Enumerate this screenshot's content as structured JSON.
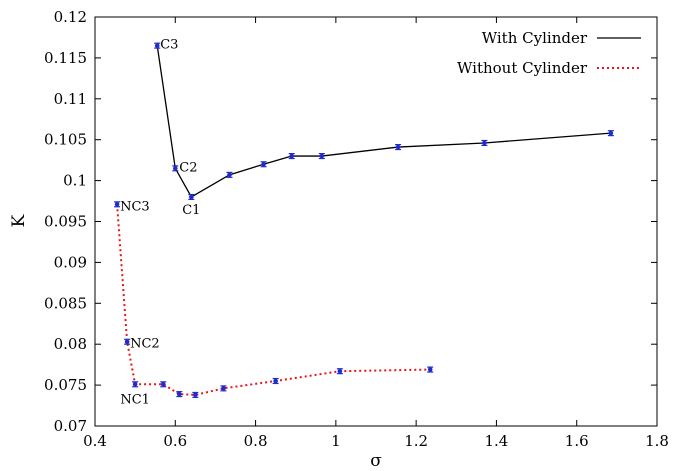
{
  "chart_data": {
    "type": "line",
    "title": "",
    "xlabel": "σ",
    "ylabel": "K",
    "xlim": [
      0.4,
      1.8
    ],
    "ylim": [
      0.07,
      0.12
    ],
    "xticks": [
      0.4,
      0.6,
      0.8,
      1.0,
      1.2,
      1.4,
      1.6,
      1.8
    ],
    "xtick_labels": [
      "0.4",
      "0.6",
      "0.8",
      "1",
      "1.2",
      "1.4",
      "1.6",
      "1.8"
    ],
    "yticks": [
      0.07,
      0.075,
      0.08,
      0.085,
      0.09,
      0.095,
      0.1,
      0.105,
      0.11,
      0.115,
      0.12
    ],
    "ytick_labels": [
      "0.07",
      "0.075",
      "0.08",
      "0.085",
      "0.09",
      "0.095",
      "0.1",
      "0.105",
      "0.11",
      "0.115",
      "0.12"
    ],
    "grid": false,
    "legend_position": "top-right",
    "series": [
      {
        "name": "With Cylinder",
        "color": "#000000",
        "line_style": "solid",
        "marker_color": "#1f2ccc",
        "x": [
          0.555,
          0.6,
          0.64,
          0.735,
          0.82,
          0.89,
          0.965,
          1.155,
          1.37,
          1.685
        ],
        "y": [
          0.1165,
          0.1015,
          0.098,
          0.1007,
          0.102,
          0.103,
          0.103,
          0.1041,
          0.1046,
          0.1058
        ],
        "error": [
          0.0003,
          0.0003,
          0.0003,
          0.0003,
          0.0003,
          0.0003,
          0.0003,
          0.0003,
          0.0003,
          0.0003
        ],
        "labels": [
          "C3",
          "C2",
          "C1",
          "",
          "",
          "",
          "",
          "",
          "",
          ""
        ]
      },
      {
        "name": "Without Cylinder",
        "color": "#e8141b",
        "line_style": "dotted",
        "marker_color": "#1f2ccc",
        "x": [
          0.455,
          0.48,
          0.5,
          0.57,
          0.61,
          0.65,
          0.72,
          0.85,
          1.01,
          1.235
        ],
        "y": [
          0.0971,
          0.0803,
          0.0751,
          0.0751,
          0.0739,
          0.0738,
          0.0746,
          0.0755,
          0.0767,
          0.0769
        ],
        "error": [
          0.0003,
          0.0003,
          0.0003,
          0.0003,
          0.0003,
          0.0003,
          0.0003,
          0.0003,
          0.0003,
          0.0003
        ],
        "labels": [
          "NC3",
          "NC2",
          "NC1",
          "",
          "",
          "",
          "",
          "",
          "",
          ""
        ]
      }
    ]
  }
}
